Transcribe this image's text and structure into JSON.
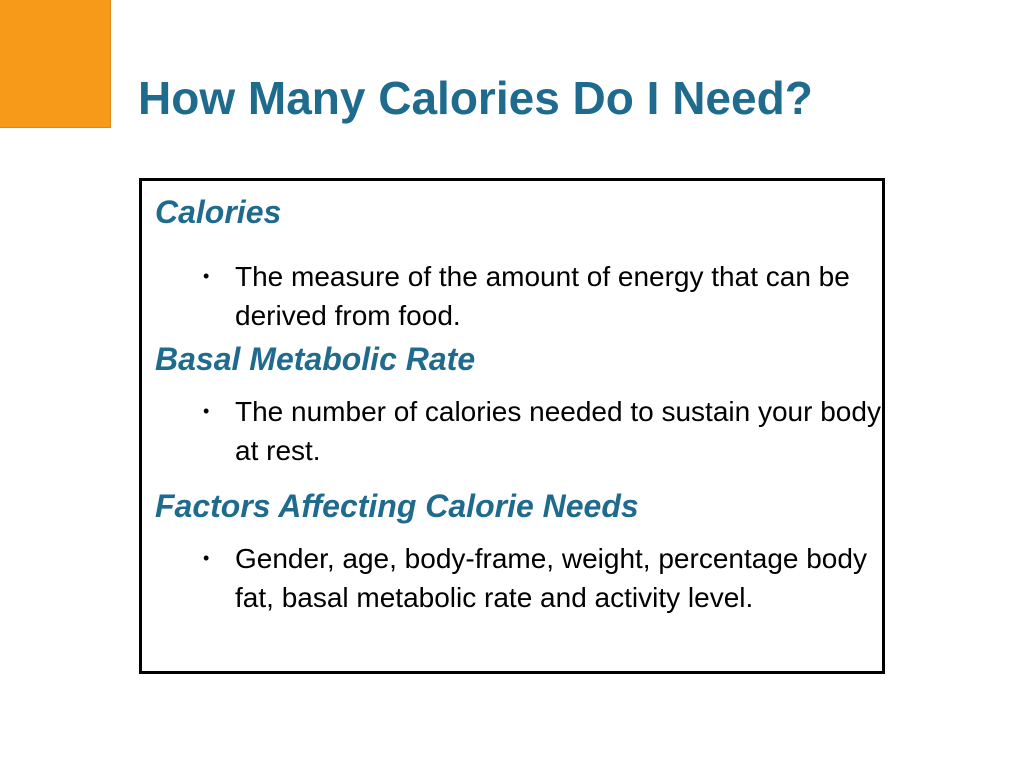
{
  "slide": {
    "title": "How Many Calories Do I Need?",
    "colors": {
      "title": "#1f6b8e",
      "heading": "#1f6b8e",
      "accent_square": "#f79a1a"
    },
    "sections": [
      {
        "heading": "Calories",
        "bullet": "The measure of the amount of energy that can be derived from food."
      },
      {
        "heading": "Basal Metabolic Rate",
        "bullet": "The number of calories needed to sustain your body at rest."
      },
      {
        "heading": "Factors Affecting Calorie Needs",
        "bullet": "Gender, age, body-frame, weight, percentage body fat, basal metabolic rate and activity level."
      }
    ]
  }
}
